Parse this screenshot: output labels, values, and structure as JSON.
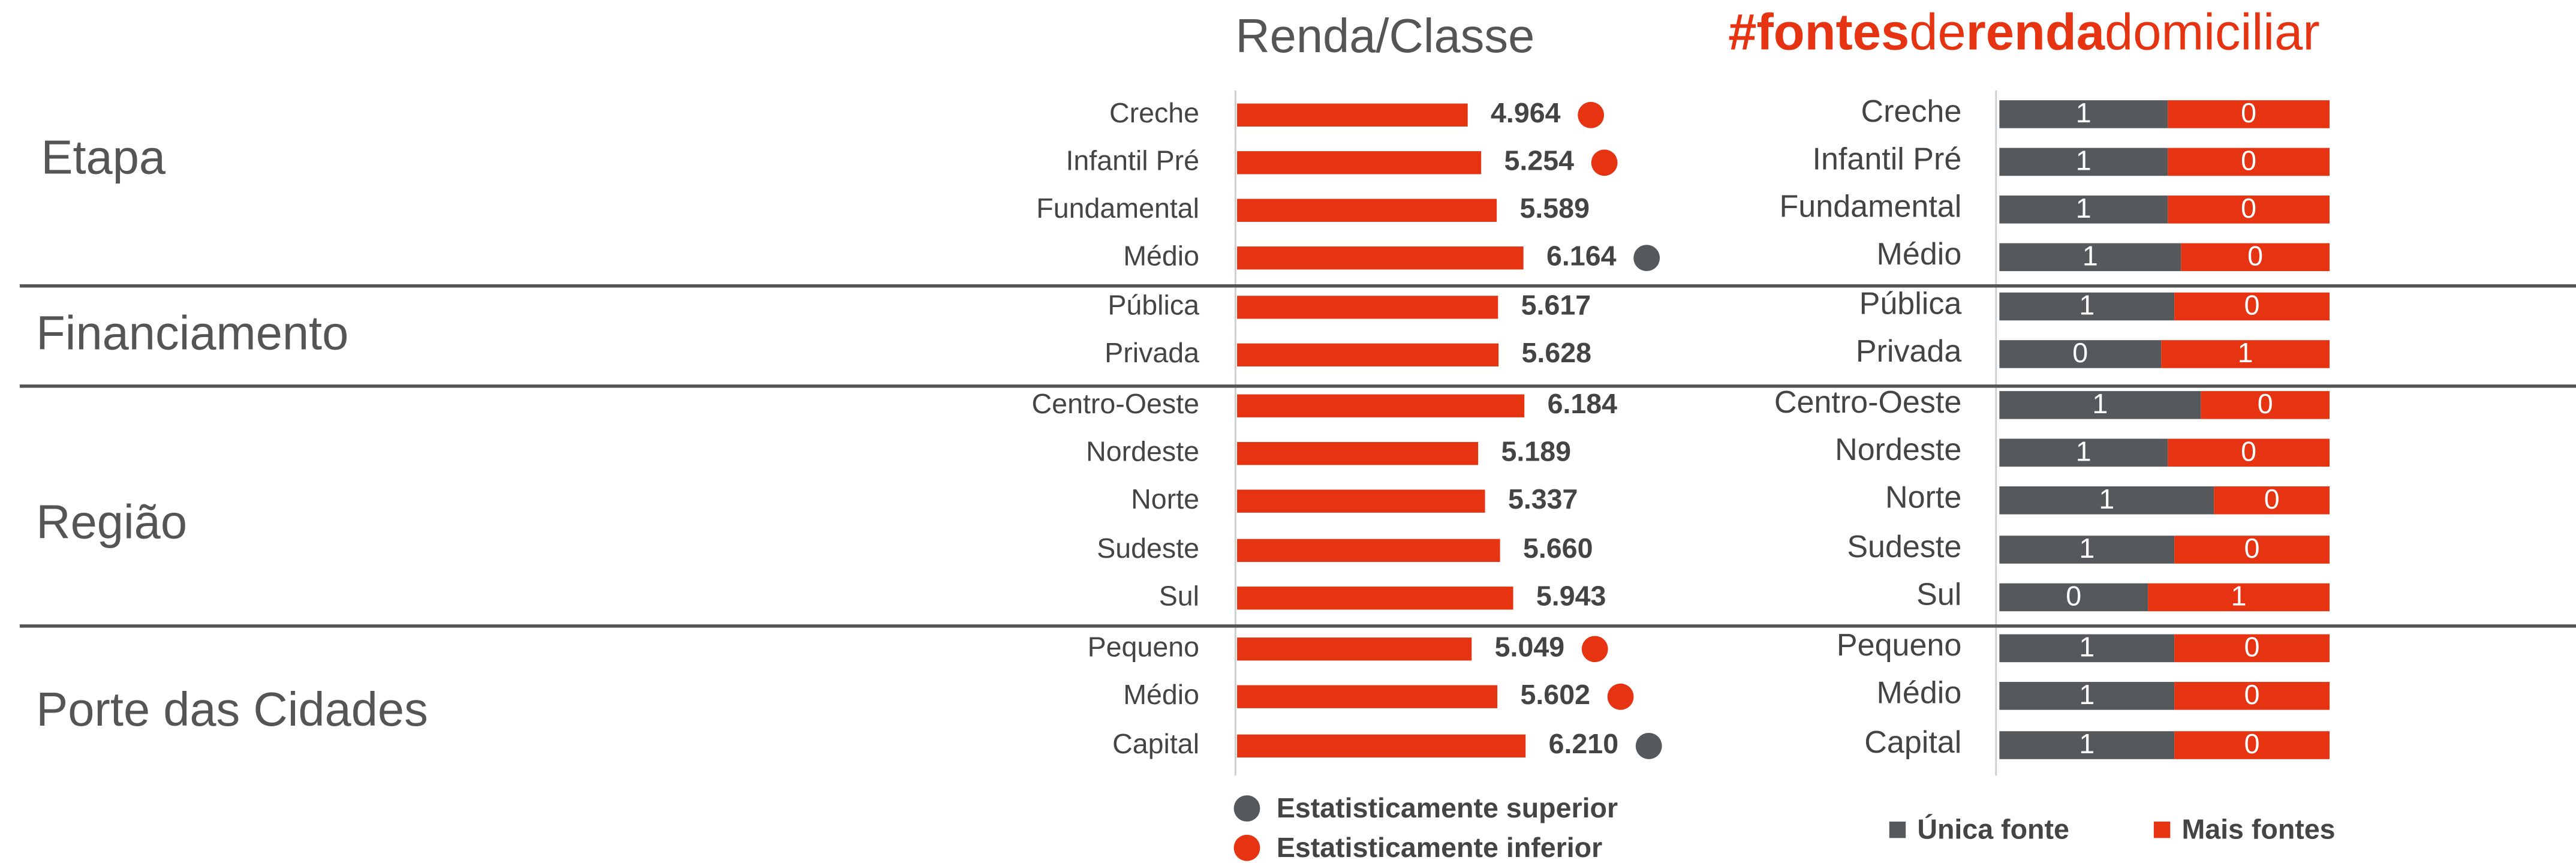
{
  "groups": [
    {
      "label": "Etapa",
      "categories": [
        "Creche",
        "Infantil Pré",
        "Fundamental",
        "Médio"
      ]
    },
    {
      "label": "Financiamento",
      "categories": [
        "Pública",
        "Privada"
      ]
    },
    {
      "label": "Região",
      "categories": [
        "Centro-Oeste",
        "Nordeste",
        "Norte",
        "Sudeste",
        "Sul"
      ]
    },
    {
      "label": "Porte das Cidades",
      "categories": [
        "Pequeno",
        "Médio",
        "Capital"
      ]
    }
  ],
  "chart_data": [
    {
      "type": "bar",
      "title": "Renda/Classe",
      "color": "#e63312",
      "values": [
        4964,
        5254,
        5589,
        6164,
        5617,
        5628,
        6184,
        5189,
        5337,
        5660,
        5943,
        5049,
        5602,
        6210
      ],
      "value_labels": [
        "4.964",
        "5.254",
        "5.589",
        "6.164",
        "5.617",
        "5.628",
        "6.184",
        "5.189",
        "5.337",
        "5.660",
        "5.943",
        "5.049",
        "5.602",
        "6.210"
      ],
      "markers": [
        1,
        1,
        null,
        0,
        null,
        null,
        null,
        null,
        null,
        null,
        null,
        1,
        1,
        0
      ],
      "legend": [
        {
          "label": "Estatisticamente superior",
          "color": "#55595c"
        },
        {
          "label": "Estatisticamente inferior",
          "color": "#e63312"
        }
      ]
    },
    {
      "type": "stacked_bar",
      "title_parts": [
        "#fontes",
        "de",
        "renda",
        "domiciliar"
      ],
      "title_color": "#e63312",
      "xlim": [
        0,
        1
      ],
      "series": [
        {
          "name": "Única fonte",
          "color": "#55595c",
          "values": [
            0.51,
            0.51,
            0.51,
            0.55,
            0.53,
            0.49,
            0.61,
            0.51,
            0.65,
            0.53,
            0.45,
            0.53,
            0.53,
            0.53
          ],
          "value_labels": [
            "1",
            "1",
            "1",
            "1",
            "1",
            "0",
            "1",
            "1",
            "1",
            "1",
            "0",
            "1",
            "1",
            "1"
          ]
        },
        {
          "name": "Mais fontes",
          "color": "#e63312",
          "values": [
            0.49,
            0.49,
            0.49,
            0.45,
            0.47,
            0.51,
            0.39,
            0.49,
            0.35,
            0.47,
            0.55,
            0.47,
            0.47,
            0.47
          ],
          "value_labels": [
            "0",
            "0",
            "0",
            "0",
            "0",
            "1",
            "0",
            "0",
            "0",
            "0",
            "1",
            "0",
            "0",
            "0"
          ]
        }
      ]
    }
  ]
}
